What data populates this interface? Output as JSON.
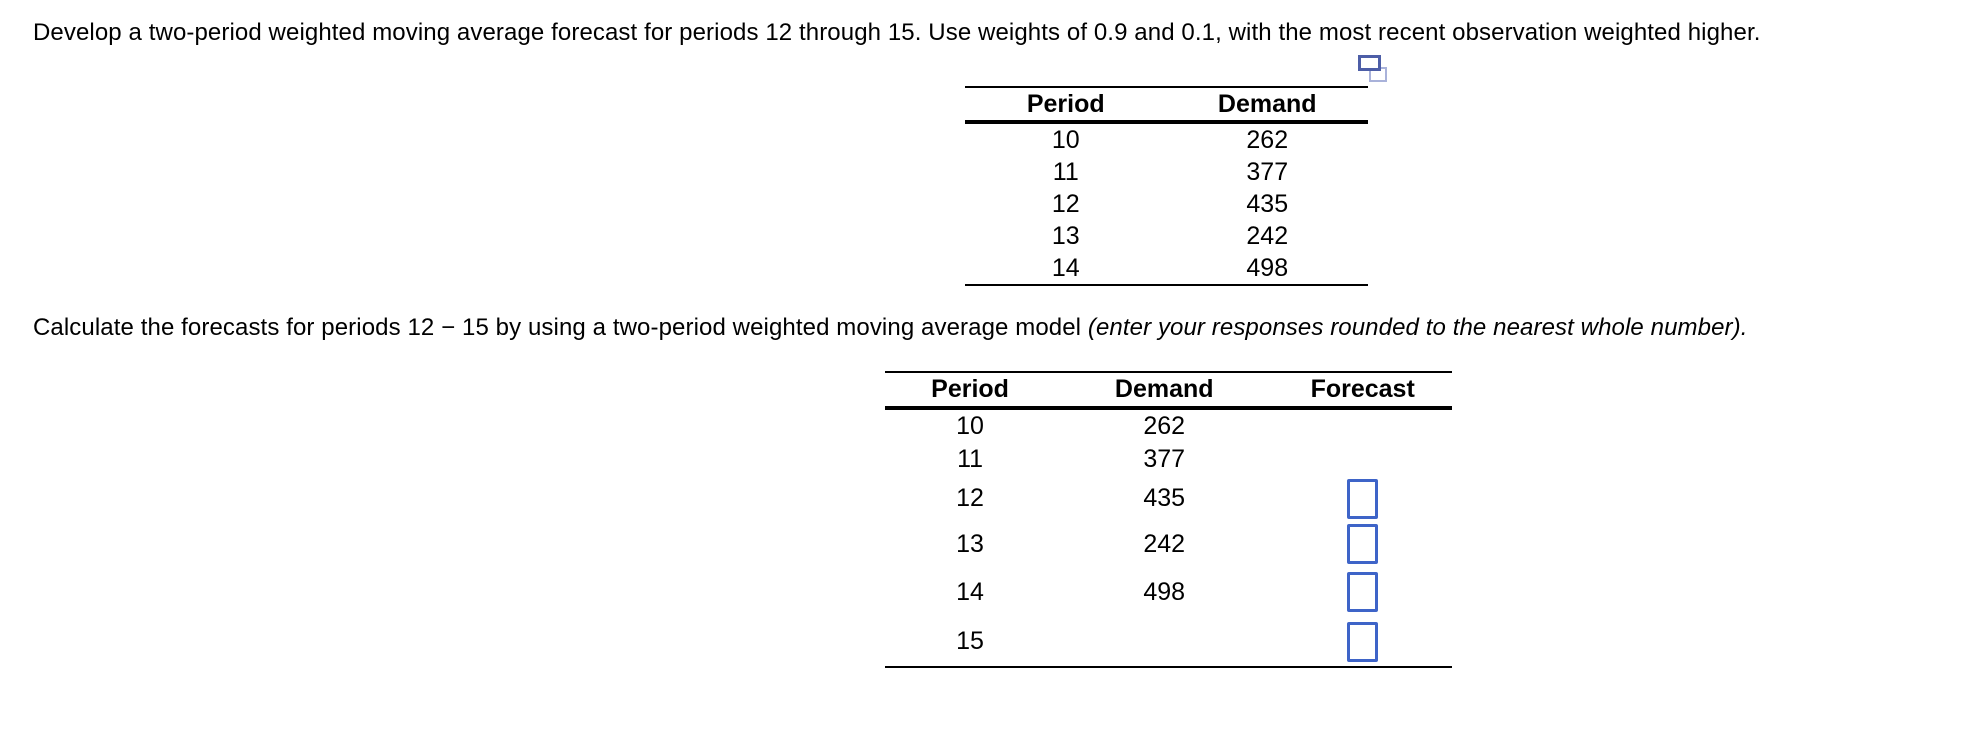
{
  "colors": {
    "text": "#000000",
    "table_line": "#000000",
    "input_border": "#3E64C8",
    "icon_front": "#4D5EA7",
    "icon_back": "#A9B2DA"
  },
  "icons": {
    "copy": "copy-icon"
  },
  "question": {
    "intro": "Develop a two-period weighted moving average forecast for periods 12 through 15. Use weights of 0.9 and 0.1, with the most recent observation weighted higher.",
    "instruction_regular": "Calculate the forecasts for periods 12 − 15 by using a two-period weighted moving average model ",
    "instruction_italic": "(enter your responses rounded to the nearest whole number)."
  },
  "data_table": {
    "headers": {
      "period": "Period",
      "demand": "Demand"
    },
    "rows": [
      {
        "period": "10",
        "demand": "262"
      },
      {
        "period": "11",
        "demand": "377"
      },
      {
        "period": "12",
        "demand": "435"
      },
      {
        "period": "13",
        "demand": "242"
      },
      {
        "period": "14",
        "demand": "498"
      }
    ]
  },
  "answer_table": {
    "headers": {
      "period": "Period",
      "demand": "Demand",
      "forecast": "Forecast"
    },
    "rows": [
      {
        "period": "10",
        "demand": "262",
        "forecast_value": ""
      },
      {
        "period": "11",
        "demand": "377",
        "forecast_value": ""
      },
      {
        "period": "12",
        "demand": "435",
        "forecast_value": ""
      },
      {
        "period": "13",
        "demand": "242",
        "forecast_value": ""
      },
      {
        "period": "14",
        "demand": "498",
        "forecast_value": ""
      },
      {
        "period": "15",
        "demand": "",
        "forecast_value": ""
      }
    ]
  }
}
